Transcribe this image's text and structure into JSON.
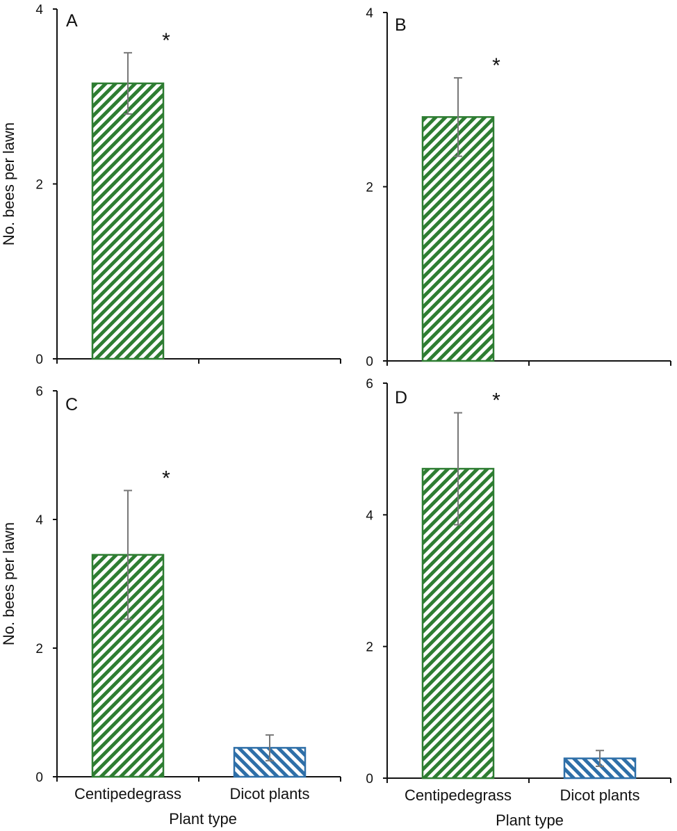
{
  "figure": {
    "ylabel": "No. bees per lawn",
    "xlabel": "Plant type",
    "categories": [
      "Centipedegrass",
      "Dicot plants"
    ]
  },
  "colors": {
    "centipedegrass": "#2e7d32",
    "dicot": "#2e6fa8",
    "error_bar": "#777777",
    "axis": "#111111"
  },
  "chart_data": [
    {
      "type": "bar",
      "panel": "A",
      "categories": [
        "Centipedegrass",
        "Dicot plants"
      ],
      "values": [
        3.15,
        0
      ],
      "errors": [
        0.35,
        0
      ],
      "significance": [
        "*",
        ""
      ],
      "ylim": [
        0,
        4
      ],
      "yticks": [
        0,
        2,
        4
      ],
      "ylabel": "No. bees per lawn",
      "xlabel": "",
      "show_category_labels": false
    },
    {
      "type": "bar",
      "panel": "B",
      "categories": [
        "Centipedegrass",
        "Dicot plants"
      ],
      "values": [
        2.8,
        0
      ],
      "errors": [
        0.45,
        0
      ],
      "significance": [
        "*",
        ""
      ],
      "ylim": [
        0,
        4
      ],
      "yticks": [
        0,
        2,
        4
      ],
      "ylabel": "",
      "xlabel": "",
      "show_category_labels": false
    },
    {
      "type": "bar",
      "panel": "C",
      "categories": [
        "Centipedegrass",
        "Dicot plants"
      ],
      "values": [
        3.45,
        0.45
      ],
      "errors": [
        1.0,
        0.2
      ],
      "significance": [
        "*",
        ""
      ],
      "ylim": [
        0,
        6
      ],
      "yticks": [
        0,
        2,
        4,
        6
      ],
      "ylabel": "No. bees per lawn",
      "xlabel": "Plant type",
      "show_category_labels": true
    },
    {
      "type": "bar",
      "panel": "D",
      "categories": [
        "Centipedegrass",
        "Dicot plants"
      ],
      "values": [
        4.7,
        0.3
      ],
      "errors": [
        0.85,
        0.12
      ],
      "significance": [
        "*",
        ""
      ],
      "ylim": [
        0,
        6
      ],
      "yticks": [
        0,
        2,
        4,
        6
      ],
      "ylabel": "",
      "xlabel": "Plant type",
      "show_category_labels": true
    }
  ]
}
